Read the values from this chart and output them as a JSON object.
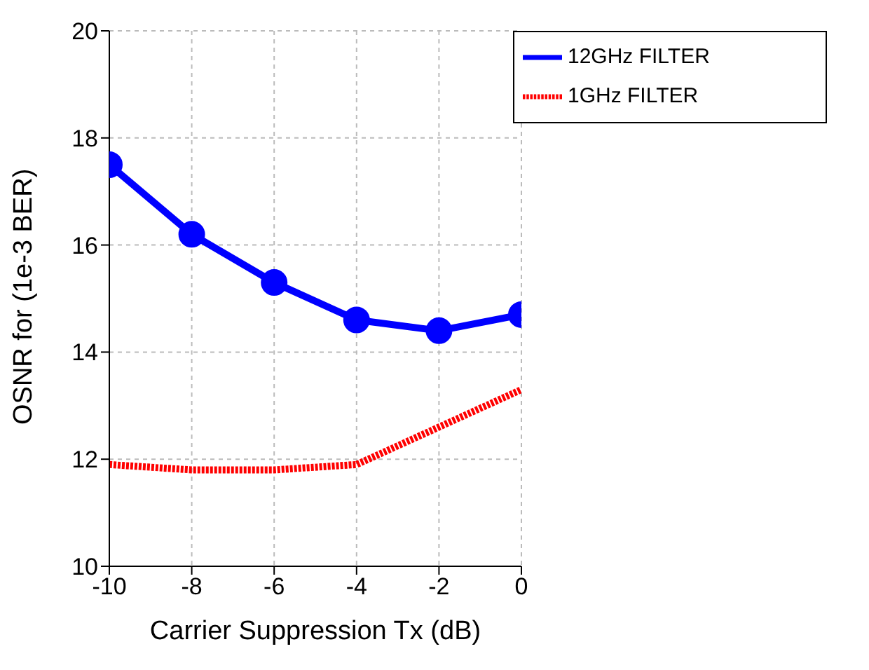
{
  "chart_data": {
    "type": "line",
    "xlabel": "Carrier Suppression Tx (dB)",
    "ylabel": "OSNR for (1e-3 BER)",
    "x": [
      -10,
      -8,
      -6,
      -4,
      -2,
      0
    ],
    "series": [
      {
        "name": "12GHz FILTER",
        "color": "#0000ff",
        "values": [
          17.5,
          16.2,
          15.3,
          14.6,
          14.4,
          14.7
        ],
        "marker": "circle",
        "line_style": "solid"
      },
      {
        "name": "1GHz FILTER",
        "color": "#ff0000",
        "values": [
          11.9,
          11.8,
          11.8,
          11.9,
          12.6,
          13.3
        ],
        "marker": "none",
        "line_style": "dotted"
      }
    ],
    "xlim": [
      -10,
      0
    ],
    "xticks": [
      -10,
      -8,
      -6,
      -4,
      -2,
      0
    ],
    "ylim": [
      10,
      20
    ],
    "yticks": [
      10,
      12,
      14,
      16,
      18,
      20
    ],
    "grid": true,
    "legend": "top right"
  }
}
